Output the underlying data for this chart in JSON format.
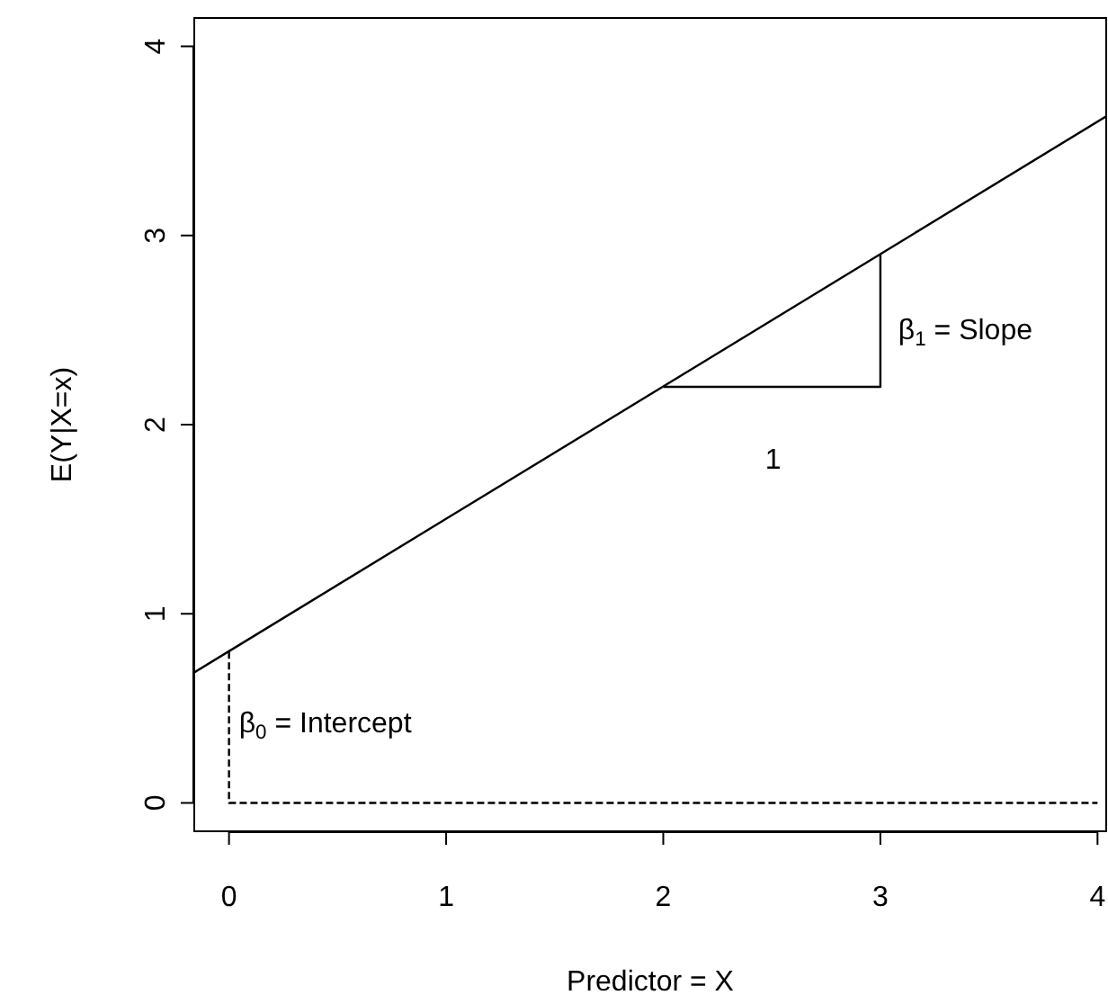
{
  "chart_data": {
    "type": "line",
    "xlabel": "Predictor = X",
    "ylabel": "E(Y|X=x)",
    "xlim": [
      -0.16,
      4.04
    ],
    "ylim": [
      -0.15,
      4.15
    ],
    "xticks": [
      0,
      1,
      2,
      3,
      4
    ],
    "yticks": [
      0,
      1,
      2,
      3,
      4
    ],
    "series": [
      {
        "x": [
          -0.16,
          4.04
        ],
        "values": [
          0.69,
          3.63
        ],
        "color": "#000000"
      },
      {
        "x": [
          2,
          3,
          3
        ],
        "values": [
          2.2,
          2.2,
          2.9
        ],
        "color": "#000000"
      },
      {
        "x": [
          0,
          0,
          4
        ],
        "values": [
          0.8,
          0,
          0
        ],
        "color": "#000000",
        "line_style": "dashed"
      }
    ],
    "annotations": [
      "β$_{1}$ = Slope",
      "1",
      "β$_{0}$ = Intercept"
    ],
    "legend": false,
    "marker": "none"
  }
}
